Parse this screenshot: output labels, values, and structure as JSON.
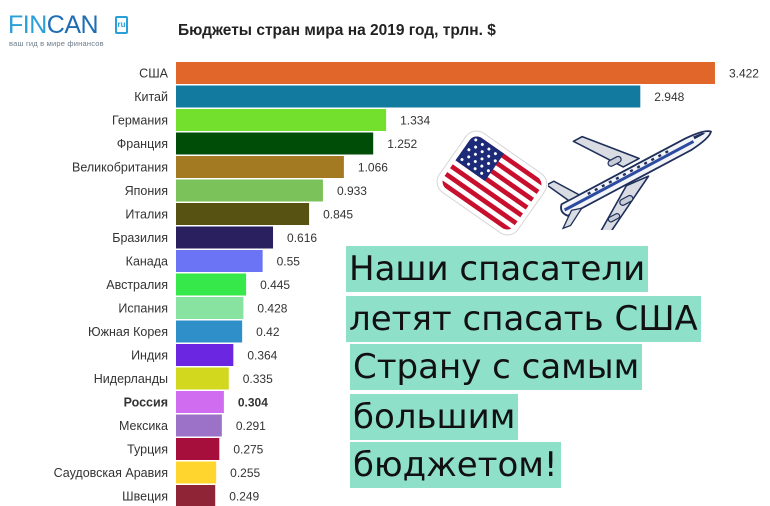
{
  "logo": {
    "fin": "FIN",
    "can": "CAN",
    "box": "ru",
    "tagline": "ваш гид в мире финансов"
  },
  "chart_data": {
    "type": "bar",
    "orientation": "horizontal",
    "title": "Бюджеты стран мира на 2019 год, трлн. $",
    "xlim": [
      0,
      3.5
    ],
    "grid": false,
    "legend": "none",
    "highlight_category": "Россия",
    "categories": [
      "США",
      "Китай",
      "Германия",
      "Франция",
      "Великобритания",
      "Япония",
      "Италия",
      "Бразилия",
      "Канада",
      "Австралия",
      "Испания",
      "Южная Корея",
      "Индия",
      "Нидерланды",
      "Россия",
      "Мексика",
      "Турция",
      "Саудовская Аравия",
      "Швеция"
    ],
    "values": [
      3.422,
      2.948,
      1.334,
      1.252,
      1.066,
      0.933,
      0.845,
      0.616,
      0.55,
      0.445,
      0.428,
      0.42,
      0.364,
      0.335,
      0.304,
      0.291,
      0.275,
      0.255,
      0.249
    ],
    "value_labels": [
      "3.422",
      "2.948",
      "1.334",
      "1.252",
      "1.066",
      "0.933",
      "0.845",
      "0.616",
      "0.55",
      "0.445",
      "0.428",
      "0.42",
      "0.364",
      "0.335",
      "0.304",
      "0.291",
      "0.275",
      "0.255",
      "0.249"
    ],
    "colors": [
      "#e0662a",
      "#127a9e",
      "#72e02c",
      "#004d07",
      "#a37a22",
      "#7cc25a",
      "#575212",
      "#2a2060",
      "#6a74f4",
      "#36e84a",
      "#88e3a0",
      "#2f8fc9",
      "#6b26e2",
      "#d2d81e",
      "#cf6cf0",
      "#9b72c8",
      "#a60e3c",
      "#ffd52e",
      "#8e2436"
    ]
  },
  "caption": {
    "lines": [
      "Наши спасатели",
      "летят спасать США",
      "Страну с самым",
      "большим",
      "бюджетом!"
    ]
  },
  "flag_icon": "usa-flag-icon",
  "plane_icon": "airplane-icon",
  "flag_colors": {
    "red": "#c8102e",
    "white": "#ffffff",
    "blue": "#1c2a78"
  },
  "caption_bg": "#8fe0c8"
}
